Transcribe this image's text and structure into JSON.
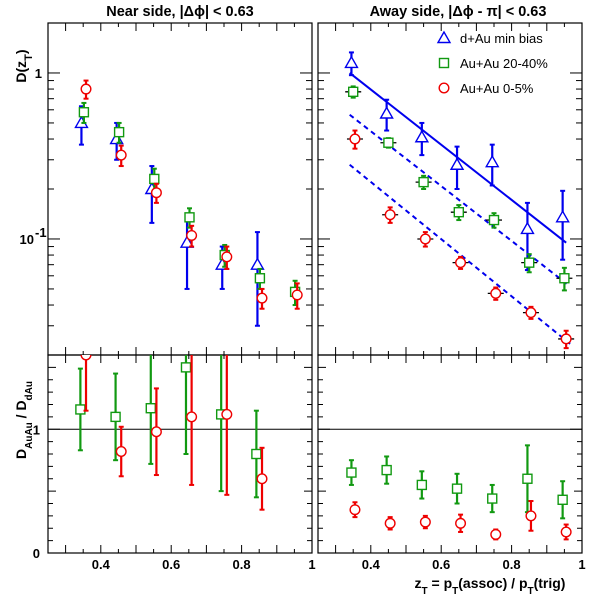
{
  "chart_data": {
    "type": "scatter",
    "x_label": "z_T = p_T(assoc) / p_T(trig)",
    "x_tick_labels": [
      "0.4",
      "0.6",
      "0.8",
      "1"
    ],
    "xlim": [
      0.25,
      1.0
    ],
    "legend": {
      "position": "top-right of away-side panel",
      "entries": [
        {
          "label": "d+Au min bias",
          "color": "#0000ee",
          "marker": "triangle"
        },
        {
          "label": "Au+Au 20-40%",
          "color": "#119911",
          "marker": "square"
        },
        {
          "label": "Au+Au 0-5%",
          "color": "#ee0000",
          "marker": "circle"
        }
      ]
    },
    "top": {
      "y_label": "D(z_T)",
      "y_scale": "log",
      "ylim": [
        0.02,
        2.0
      ],
      "y_tick_labels": {
        "one": "1",
        "tenth": "10"
      },
      "panels": [
        {
          "title": "Near side, |Δϕ| < 0.63",
          "series": [
            {
              "name": "d+Au min bias",
              "x": [
                0.345,
                0.445,
                0.545,
                0.645,
                0.745,
                0.845
              ],
              "y": [
                0.5,
                0.4,
                0.2,
                0.095,
                0.07,
                0.07
              ],
              "err": [
                0.13,
                0.1,
                0.075,
                0.045,
                0.02,
                0.04
              ]
            },
            {
              "name": "Au+Au 20-40%",
              "x": [
                0.352,
                0.452,
                0.552,
                0.652,
                0.752,
                0.852,
                0.952
              ],
              "y": [
                0.58,
                0.44,
                0.23,
                0.135,
                0.08,
                0.058,
                0.048
              ],
              "err": [
                0.08,
                0.06,
                0.035,
                0.018,
                0.012,
                0.008,
                0.008
              ]
            },
            {
              "name": "Au+Au 0-5%",
              "x": [
                0.358,
                0.458,
                0.558,
                0.658,
                0.758,
                0.858,
                0.958
              ],
              "y": [
                0.8,
                0.32,
                0.19,
                0.105,
                0.078,
                0.044,
                0.046
              ],
              "err": [
                0.1,
                0.045,
                0.025,
                0.015,
                0.012,
                0.006,
                0.008
              ]
            }
          ]
        },
        {
          "title": "Away side, |Δϕ - π| < 0.63",
          "series": [
            {
              "name": "d+Au min bias",
              "x": [
                0.345,
                0.445,
                0.545,
                0.645,
                0.745,
                0.845,
                0.945
              ],
              "y": [
                1.15,
                0.57,
                0.41,
                0.28,
                0.29,
                0.115,
                0.135
              ],
              "err": [
                0.18,
                0.12,
                0.09,
                0.08,
                0.08,
                0.05,
                0.06
              ]
            },
            {
              "name": "Au+Au 20-40%",
              "x": [
                0.35,
                0.45,
                0.55,
                0.65,
                0.75,
                0.85,
                0.95
              ],
              "y": [
                0.77,
                0.38,
                0.22,
                0.145,
                0.13,
                0.072,
                0.058
              ],
              "err": [
                0.06,
                0.025,
                0.02,
                0.015,
                0.013,
                0.009,
                0.009
              ]
            },
            {
              "name": "Au+Au 0-5%",
              "x": [
                0.355,
                0.455,
                0.555,
                0.655,
                0.755,
                0.855,
                0.955
              ],
              "y": [
                0.4,
                0.14,
                0.1,
                0.072,
                0.047,
                0.036,
                0.025
              ],
              "err": [
                0.05,
                0.015,
                0.01,
                0.006,
                0.004,
                0.003,
                0.003
              ]
            }
          ],
          "fits": [
            {
              "style": "solid",
              "color": "#0000ee",
              "x": [
                0.34,
                0.955
              ],
              "y": [
                1.0,
                0.095
              ]
            },
            {
              "style": "dashed",
              "color": "#0000ee",
              "x": [
                0.34,
                0.965
              ],
              "y": [
                0.56,
                0.052
              ]
            },
            {
              "style": "dashed",
              "color": "#0000ee",
              "x": [
                0.34,
                0.97
              ],
              "y": [
                0.28,
                0.023
              ]
            }
          ]
        }
      ]
    },
    "bottom": {
      "y_label": "D_AuAu / D_dAu",
      "ylim": [
        0,
        1.6
      ],
      "y_ticks": [
        0,
        1
      ],
      "ref_line": 1,
      "panels": [
        {
          "series": [
            {
              "name": "Au+Au 20-40%",
              "x": [
                0.342,
                0.442,
                0.542,
                0.642,
                0.742,
                0.842
              ],
              "y": [
                1.16,
                1.1,
                1.17,
                1.5,
                1.12,
                0.8
              ],
              "err": [
                0.33,
                0.35,
                0.45,
                0.7,
                0.62,
                0.35
              ]
            },
            {
              "name": "Au+Au 0-5%",
              "x": [
                0.358,
                0.458,
                0.558,
                0.658,
                0.758,
                0.858
              ],
              "y": [
                1.6,
                0.82,
                0.98,
                1.1,
                1.12,
                0.6
              ],
              "err": [
                0.45,
                0.2,
                0.35,
                0.55,
                0.65,
                0.25
              ]
            }
          ]
        },
        {
          "series": [
            {
              "name": "Au+Au 20-40%",
              "x": [
                0.345,
                0.445,
                0.545,
                0.645,
                0.745,
                0.845,
                0.945
              ],
              "y": [
                0.65,
                0.67,
                0.55,
                0.52,
                0.44,
                0.6,
                0.43
              ],
              "err": [
                0.1,
                0.11,
                0.11,
                0.12,
                0.11,
                0.27,
                0.15
              ]
            },
            {
              "name": "Au+Au 0-5%",
              "x": [
                0.355,
                0.455,
                0.555,
                0.655,
                0.755,
                0.855,
                0.955
              ],
              "y": [
                0.35,
                0.24,
                0.25,
                0.24,
                0.15,
                0.3,
                0.17
              ],
              "err": [
                0.06,
                0.05,
                0.05,
                0.07,
                0.04,
                0.12,
                0.06
              ]
            }
          ]
        }
      ]
    }
  }
}
